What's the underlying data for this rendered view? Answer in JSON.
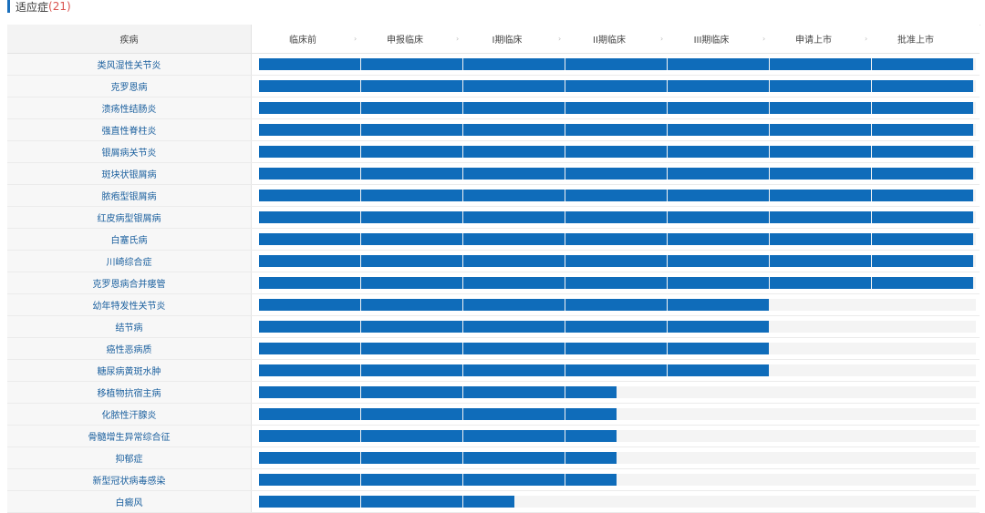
{
  "section": {
    "title": "适应症",
    "count": "(21)"
  },
  "table": {
    "col_header": "疾病",
    "stages": [
      "临床前",
      "申报临床",
      "I期临床",
      "II期临床",
      "III期临床",
      "申请上市",
      "批准上市"
    ],
    "arrow_glyph": "›",
    "colors": {
      "bar": "#0f6cba",
      "track": "#f4f4f4",
      "link": "#1a5f9e",
      "count": "#d9534f"
    },
    "rows": [
      {
        "name": "类风湿性关节炎",
        "stages_completed": 7
      },
      {
        "name": "克罗恩病",
        "stages_completed": 7
      },
      {
        "name": "溃疡性结肠炎",
        "stages_completed": 7
      },
      {
        "name": "强直性脊柱炎",
        "stages_completed": 7
      },
      {
        "name": "银屑病关节炎",
        "stages_completed": 7
      },
      {
        "name": "斑块状银屑病",
        "stages_completed": 7
      },
      {
        "name": "脓疱型银屑病",
        "stages_completed": 7
      },
      {
        "name": "红皮病型银屑病",
        "stages_completed": 7
      },
      {
        "name": "白塞氏病",
        "stages_completed": 7
      },
      {
        "name": "川崎综合症",
        "stages_completed": 7
      },
      {
        "name": "克罗恩病合并瘘管",
        "stages_completed": 7
      },
      {
        "name": "幼年特发性关节炎",
        "stages_completed": 5
      },
      {
        "name": "结节病",
        "stages_completed": 5
      },
      {
        "name": "癌性恶病质",
        "stages_completed": 5
      },
      {
        "name": "糖尿病黄斑水肿",
        "stages_completed": 5
      },
      {
        "name": "移植物抗宿主病",
        "stages_completed": 3.5
      },
      {
        "name": "化脓性汗腺炎",
        "stages_completed": 3.5
      },
      {
        "name": "骨髓增生异常综合征",
        "stages_completed": 3.5
      },
      {
        "name": "抑郁症",
        "stages_completed": 3.5
      },
      {
        "name": "新型冠状病毒感染",
        "stages_completed": 3.5
      },
      {
        "name": "白癜风",
        "stages_completed": 2.5
      }
    ]
  }
}
